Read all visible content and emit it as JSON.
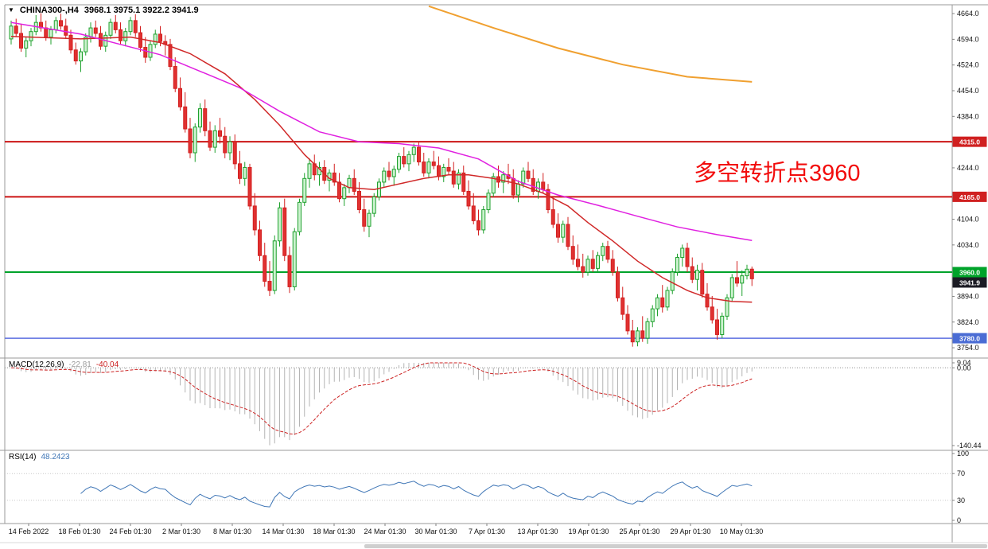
{
  "title": {
    "icon": "▼",
    "symbol": "CHINA300-,H4",
    "ohlc": "3968.1 3975.1 3922.2 3941.9"
  },
  "annotation": {
    "text": "多空转折点3960",
    "color": "#f20c0c"
  },
  "indicator_labels": {
    "macd_name": "MACD(12,26,9)",
    "macd_main": "-22.81",
    "macd_signal": "-40.04",
    "rsi_name": "RSI(14)",
    "rsi_value": "48.2423"
  },
  "axes": {
    "price_labels": [
      "4664.0",
      "4594.0",
      "4524.0",
      "4454.0",
      "4384.0",
      "4244.0",
      "4104.0",
      "4034.0",
      "3894.0",
      "3824.0",
      "3754.0"
    ],
    "macd_labels": [
      "9.04",
      "0.00",
      "-140.44"
    ],
    "rsi_labels": [
      "100",
      "70",
      "30",
      "0"
    ]
  },
  "price_tags": [
    {
      "label": "4315.0",
      "price": 4315.0,
      "bg": "#d02020"
    },
    {
      "label": "4165.0",
      "price": 4165.0,
      "bg": "#d02020"
    },
    {
      "label": "3960.0",
      "price": 3960.0,
      "bg": "#00a32a"
    },
    {
      "label": "3941.9",
      "price": 3941.9,
      "bg": "#1b1b24"
    },
    {
      "label": "3780.0",
      "price": 3780.0,
      "bg": "#4a6cd4"
    }
  ],
  "chart_data": {
    "type": "candlestick",
    "symbol": "CHINA300-",
    "timeframe": "H4",
    "title": "CHINA300-,H4 3968.1 3975.1 3922.2 3941.9",
    "ylim": [
      3726,
      4688
    ],
    "grid": false,
    "up_color": "#1fa12e",
    "up_fill": "#ccf2cf",
    "down_color": "#d32020",
    "down_fill": "#e03131",
    "x_labels": [
      "14 Feb 2022",
      "18 Feb 01:30",
      "24 Feb 01:30",
      "2 Mar 01:30",
      "8 Mar 01:30",
      "14 Mar 01:30",
      "18 Mar 01:30",
      "24 Mar 01:30",
      "30 Mar 01:30",
      "7 Apr 01:30",
      "13 Apr 01:30",
      "19 Apr 01:30",
      "25 Apr 01:30",
      "29 Apr 01:30",
      "10 May 01:30"
    ],
    "horizontal_lines": [
      {
        "price": 4315,
        "color": "#cc1414",
        "width": 2
      },
      {
        "price": 4165,
        "color": "#cc1414",
        "width": 2
      },
      {
        "price": 3960,
        "color": "#00a32a",
        "width": 2
      },
      {
        "price": 3780,
        "color": "#5b6ee1",
        "width": 1.5
      }
    ],
    "candles": [
      [
        4595,
        4645,
        4580,
        4630
      ],
      [
        4630,
        4650,
        4600,
        4610
      ],
      [
        4610,
        4635,
        4560,
        4570
      ],
      [
        4570,
        4600,
        4545,
        4590
      ],
      [
        4590,
        4625,
        4575,
        4615
      ],
      [
        4615,
        4660,
        4605,
        4640
      ],
      [
        4640,
        4665,
        4615,
        4625
      ],
      [
        4625,
        4645,
        4590,
        4600
      ],
      [
        4600,
        4630,
        4580,
        4620
      ],
      [
        4620,
        4655,
        4610,
        4645
      ],
      [
        4645,
        4664,
        4620,
        4630
      ],
      [
        4630,
        4650,
        4595,
        4605
      ],
      [
        4605,
        4620,
        4555,
        4565
      ],
      [
        4565,
        4585,
        4525,
        4535
      ],
      [
        4535,
        4570,
        4505,
        4560
      ],
      [
        4560,
        4610,
        4550,
        4600
      ],
      [
        4600,
        4640,
        4585,
        4625
      ],
      [
        4625,
        4645,
        4600,
        4610
      ],
      [
        4610,
        4630,
        4565,
        4575
      ],
      [
        4575,
        4615,
        4560,
        4605
      ],
      [
        4605,
        4650,
        4595,
        4640
      ],
      [
        4640,
        4660,
        4610,
        4620
      ],
      [
        4620,
        4640,
        4580,
        4590
      ],
      [
        4590,
        4625,
        4575,
        4615
      ],
      [
        4615,
        4655,
        4605,
        4645
      ],
      [
        4645,
        4662,
        4600,
        4612
      ],
      [
        4612,
        4630,
        4560,
        4572
      ],
      [
        4572,
        4600,
        4530,
        4545
      ],
      [
        4545,
        4590,
        4535,
        4580
      ],
      [
        4580,
        4620,
        4570,
        4608
      ],
      [
        4608,
        4630,
        4575,
        4588
      ],
      [
        4588,
        4605,
        4550,
        4580
      ],
      [
        4580,
        4595,
        4510,
        4520
      ],
      [
        4520,
        4545,
        4450,
        4460
      ],
      [
        4460,
        4490,
        4400,
        4410
      ],
      [
        4410,
        4450,
        4340,
        4350
      ],
      [
        4350,
        4380,
        4270,
        4285
      ],
      [
        4285,
        4365,
        4260,
        4355
      ],
      [
        4355,
        4420,
        4340,
        4405
      ],
      [
        4405,
        4430,
        4330,
        4345
      ],
      [
        4345,
        4370,
        4290,
        4300
      ],
      [
        4300,
        4360,
        4285,
        4345
      ],
      [
        4345,
        4380,
        4310,
        4330
      ],
      [
        4330,
        4355,
        4270,
        4285
      ],
      [
        4285,
        4330,
        4265,
        4315
      ],
      [
        4315,
        4335,
        4240,
        4255
      ],
      [
        4255,
        4290,
        4200,
        4215
      ],
      [
        4215,
        4260,
        4195,
        4245
      ],
      [
        4245,
        4255,
        4130,
        4140
      ],
      [
        4140,
        4175,
        4060,
        4075
      ],
      [
        4075,
        4100,
        3990,
        4005
      ],
      [
        4005,
        4040,
        3920,
        3935
      ],
      [
        3935,
        3990,
        3895,
        3910
      ],
      [
        3910,
        4060,
        3900,
        4045
      ],
      [
        4045,
        4150,
        4030,
        4135
      ],
      [
        4135,
        4160,
        3990,
        4005
      ],
      [
        4005,
        4030,
        3903,
        3920
      ],
      [
        3920,
        4080,
        3910,
        4070
      ],
      [
        4070,
        4160,
        4060,
        4150
      ],
      [
        4150,
        4230,
        4140,
        4215
      ],
      [
        4215,
        4270,
        4190,
        4255
      ],
      [
        4255,
        4280,
        4210,
        4225
      ],
      [
        4225,
        4260,
        4195,
        4245
      ],
      [
        4245,
        4265,
        4200,
        4210
      ],
      [
        4210,
        4240,
        4180,
        4230
      ],
      [
        4230,
        4255,
        4195,
        4205
      ],
      [
        4205,
        4230,
        4150,
        4160
      ],
      [
        4160,
        4200,
        4140,
        4190
      ],
      [
        4190,
        4225,
        4175,
        4215
      ],
      [
        4215,
        4240,
        4170,
        4180
      ],
      [
        4180,
        4205,
        4120,
        4130
      ],
      [
        4130,
        4160,
        4070,
        4085
      ],
      [
        4085,
        4130,
        4055,
        4120
      ],
      [
        4120,
        4175,
        4110,
        4165
      ],
      [
        4165,
        4215,
        4155,
        4205
      ],
      [
        4205,
        4245,
        4190,
        4235
      ],
      [
        4235,
        4260,
        4210,
        4220
      ],
      [
        4220,
        4250,
        4195,
        4240
      ],
      [
        4240,
        4285,
        4230,
        4275
      ],
      [
        4275,
        4300,
        4245,
        4255
      ],
      [
        4255,
        4290,
        4235,
        4280
      ],
      [
        4280,
        4310,
        4260,
        4300
      ],
      [
        4300,
        4315,
        4250,
        4260
      ],
      [
        4260,
        4285,
        4220,
        4230
      ],
      [
        4230,
        4270,
        4215,
        4260
      ],
      [
        4260,
        4290,
        4240,
        4250
      ],
      [
        4250,
        4275,
        4210,
        4220
      ],
      [
        4220,
        4255,
        4205,
        4245
      ],
      [
        4245,
        4270,
        4225,
        4235
      ],
      [
        4235,
        4260,
        4190,
        4200
      ],
      [
        4200,
        4240,
        4185,
        4230
      ],
      [
        4230,
        4250,
        4170,
        4180
      ],
      [
        4180,
        4210,
        4130,
        4140
      ],
      [
        4140,
        4175,
        4090,
        4100
      ],
      [
        4100,
        4130,
        4060,
        4075
      ],
      [
        4075,
        4140,
        4065,
        4130
      ],
      [
        4130,
        4185,
        4120,
        4175
      ],
      [
        4175,
        4230,
        4165,
        4220
      ],
      [
        4220,
        4250,
        4190,
        4205
      ],
      [
        4205,
        4235,
        4175,
        4225
      ],
      [
        4225,
        4255,
        4200,
        4215
      ],
      [
        4215,
        4240,
        4160,
        4170
      ],
      [
        4170,
        4210,
        4150,
        4200
      ],
      [
        4200,
        4245,
        4190,
        4235
      ],
      [
        4235,
        4260,
        4205,
        4215
      ],
      [
        4215,
        4240,
        4170,
        4180
      ],
      [
        4180,
        4215,
        4160,
        4205
      ],
      [
        4205,
        4230,
        4175,
        4185
      ],
      [
        4185,
        4200,
        4120,
        4130
      ],
      [
        4130,
        4160,
        4080,
        4090
      ],
      [
        4090,
        4120,
        4040,
        4055
      ],
      [
        4055,
        4100,
        4040,
        4090
      ],
      [
        4090,
        4110,
        4020,
        4030
      ],
      [
        4030,
        4060,
        3980,
        3995
      ],
      [
        3995,
        4035,
        3965,
        3975
      ],
      [
        3975,
        4010,
        3945,
        3960
      ],
      [
        3960,
        4005,
        3950,
        3995
      ],
      [
        3995,
        4020,
        3960,
        3970
      ],
      [
        3970,
        4015,
        3960,
        4005
      ],
      [
        4005,
        4040,
        3990,
        4030
      ],
      [
        4030,
        4045,
        3985,
        3995
      ],
      [
        3995,
        4020,
        3950,
        3960
      ],
      [
        3960,
        3975,
        3880,
        3890
      ],
      [
        3890,
        3920,
        3830,
        3845
      ],
      [
        3845,
        3870,
        3790,
        3800
      ],
      [
        3800,
        3830,
        3757,
        3770
      ],
      [
        3770,
        3810,
        3758,
        3800
      ],
      [
        3800,
        3840,
        3770,
        3780
      ],
      [
        3780,
        3835,
        3765,
        3825
      ],
      [
        3825,
        3870,
        3810,
        3860
      ],
      [
        3860,
        3900,
        3840,
        3890
      ],
      [
        3890,
        3925,
        3850,
        3865
      ],
      [
        3865,
        3920,
        3855,
        3910
      ],
      [
        3910,
        3970,
        3900,
        3960
      ],
      [
        3960,
        4010,
        3950,
        4000
      ],
      [
        4000,
        4035,
        3975,
        4025
      ],
      [
        4025,
        4040,
        3960,
        3975
      ],
      [
        3975,
        4000,
        3930,
        3940
      ],
      [
        3940,
        3980,
        3910,
        3965
      ],
      [
        3965,
        3985,
        3890,
        3900
      ],
      [
        3900,
        3930,
        3855,
        3865
      ],
      [
        3865,
        3895,
        3820,
        3830
      ],
      [
        3830,
        3860,
        3776,
        3790
      ],
      [
        3790,
        3850,
        3780,
        3840
      ],
      [
        3840,
        3900,
        3830,
        3890
      ],
      [
        3890,
        3955,
        3880,
        3945
      ],
      [
        3945,
        3990,
        3920,
        3930
      ],
      [
        3930,
        3965,
        3895,
        3950
      ],
      [
        3950,
        3980,
        3940,
        3968
      ],
      [
        3968.1,
        3975.1,
        3922.2,
        3941.9
      ]
    ],
    "overlays": [
      {
        "name": "ma-fast-red",
        "color": "#d02828",
        "width": 1.5,
        "points": [
          [
            0,
            4602
          ],
          [
            14,
            4595
          ],
          [
            24,
            4600
          ],
          [
            30,
            4585
          ],
          [
            36,
            4555
          ],
          [
            43,
            4500
          ],
          [
            49,
            4430
          ],
          [
            54,
            4360
          ],
          [
            59,
            4280
          ],
          [
            64,
            4215
          ],
          [
            68,
            4190
          ],
          [
            73,
            4185
          ],
          [
            78,
            4200
          ],
          [
            83,
            4215
          ],
          [
            88,
            4225
          ],
          [
            92,
            4225
          ],
          [
            97,
            4215
          ],
          [
            102,
            4200
          ],
          [
            107,
            4175
          ],
          [
            112,
            4140
          ],
          [
            116,
            4095
          ],
          [
            121,
            4045
          ],
          [
            126,
            3990
          ],
          [
            131,
            3945
          ],
          [
            136,
            3910
          ],
          [
            140,
            3890
          ],
          [
            145,
            3880
          ],
          [
            149,
            3878
          ]
        ]
      },
      {
        "name": "ma-medium-magenta",
        "color": "#e020e0",
        "width": 1.5,
        "points": [
          [
            0,
            4640
          ],
          [
            14,
            4608
          ],
          [
            30,
            4552
          ],
          [
            46,
            4462
          ],
          [
            54,
            4398
          ],
          [
            62,
            4342
          ],
          [
            70,
            4315
          ],
          [
            78,
            4310
          ],
          [
            86,
            4298
          ],
          [
            94,
            4268
          ],
          [
            102,
            4207
          ],
          [
            110,
            4170
          ],
          [
            118,
            4142
          ],
          [
            126,
            4112
          ],
          [
            134,
            4083
          ],
          [
            142,
            4062
          ],
          [
            149,
            4046
          ]
        ]
      },
      {
        "name": "ma-slow-orange",
        "color": "#f0a030",
        "width": 2,
        "points": [
          [
            84,
            4684
          ],
          [
            97,
            4625
          ],
          [
            110,
            4570
          ],
          [
            123,
            4525
          ],
          [
            136,
            4492
          ],
          [
            149,
            4478
          ]
        ]
      }
    ],
    "indicators": [
      {
        "name": "MACD(12,26,9)",
        "type": "macd",
        "fast": 12,
        "slow": 26,
        "signal": 9,
        "current_main": -22.81,
        "current_signal": -40.04,
        "range": [
          -140.44,
          9.04
        ],
        "histogram_color": "#b4b4b4",
        "signal_color": "#cc2222"
      },
      {
        "name": "RSI(14)",
        "type": "rsi",
        "period": 14,
        "current": 48.2423,
        "range": [
          0,
          100
        ],
        "levels": [
          30,
          70
        ],
        "line_color": "#3f76b6"
      }
    ]
  }
}
